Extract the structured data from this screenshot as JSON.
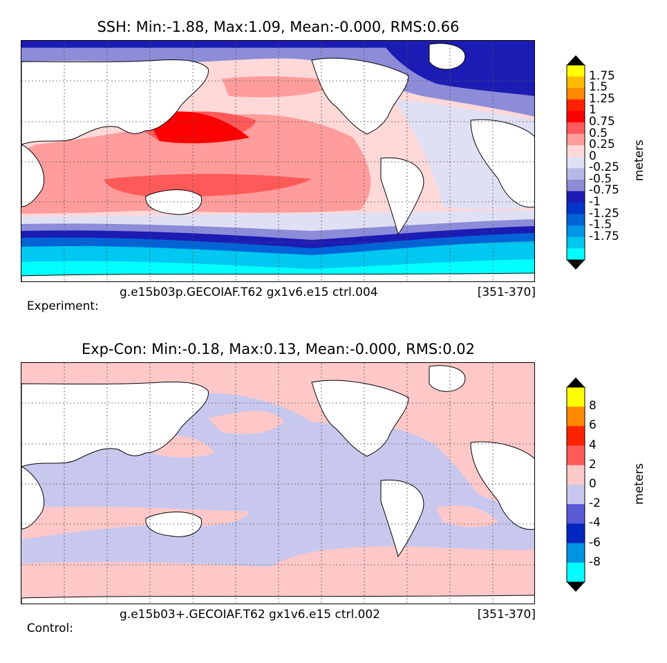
{
  "panel1": {
    "title": "SSH: Min:-1.88, Max:1.09, Mean:-0.000, RMS:0.66",
    "footer_left": "Experiment:",
    "footer_mid": "g.e15b03p.GECOIAF.T62 gx1v6.e15 ctrl.004",
    "footer_right": "[351-370]",
    "colorbar_units": "meters",
    "colorbar_labels": [
      "1.75",
      "1.5",
      "1.25",
      "1",
      "0.75",
      "0.5",
      "0.25",
      "0",
      "-0.25",
      "-0.5",
      "-0.75",
      "-1",
      "-1.25",
      "-1.5",
      "-1.75"
    ],
    "colorbar_colors": [
      "#ffff00",
      "#ffbb00",
      "#ff8800",
      "#ff2200",
      "#ff0000",
      "#ff5a5a",
      "#ff9c9c",
      "#ffd8d8",
      "#e0e0f4",
      "#b8b8e8",
      "#8c8cd8",
      "#1c1cb4",
      "#0036c8",
      "#0064d8",
      "#0096e8",
      "#00c8f0",
      "#00ffff"
    ],
    "over_color": "#000000",
    "under_color": "#000000"
  },
  "panel2": {
    "title": "Exp-Con: Min:-0.18, Max:0.13, Mean:-0.000, RMS:0.02",
    "footer_left": "Control:",
    "footer_mid": "g.e15b03+.GECOIAF.T62 gx1v6.e15 ctrl.002",
    "footer_right": "[351-370]",
    "colorbar_units": "meters",
    "colorbar_labels": [
      "8",
      "6",
      "4",
      "2",
      "0",
      "-2",
      "-4",
      "-6",
      "-8"
    ],
    "colorbar_colors": [
      "#ffff00",
      "#ff8800",
      "#ff2200",
      "#ff5a5a",
      "#ffc8c8",
      "#c8c8ee",
      "#5a5ad4",
      "#0028c0",
      "#0094e0",
      "#00ffff"
    ],
    "over_color": "#000000",
    "under_color": "#000000"
  }
}
